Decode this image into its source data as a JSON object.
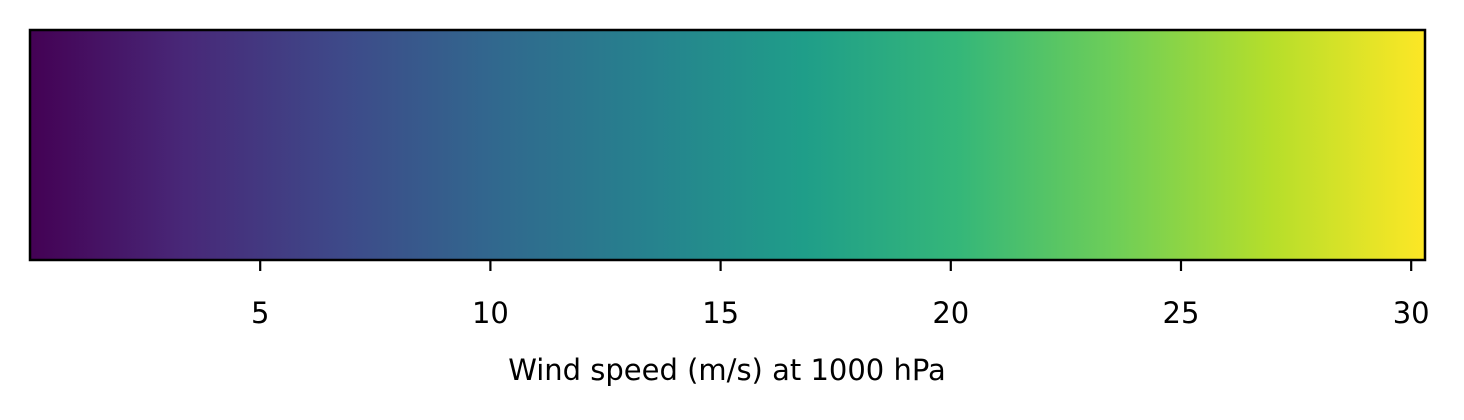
{
  "chart_data": {
    "type": "colorbar",
    "orientation": "horizontal",
    "colormap": "viridis",
    "colormap_stops": [
      "#440154",
      "#482878",
      "#3e4989",
      "#31688e",
      "#26828e",
      "#1f9e89",
      "#35b779",
      "#6ece58",
      "#b5de2b",
      "#fde725"
    ],
    "vmin": 0,
    "vmax": 30.3,
    "ticks": [
      5,
      10,
      15,
      20,
      25,
      30
    ],
    "tick_labels": [
      "5",
      "10",
      "15",
      "20",
      "25",
      "30"
    ],
    "xlabel": "Wind speed (m/s) at 1000 hPa"
  }
}
